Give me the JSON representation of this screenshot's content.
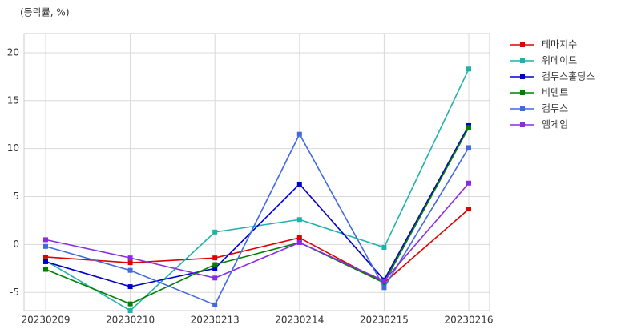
{
  "chart_data": {
    "type": "line",
    "title": "(등락률, %)",
    "categories": [
      "20230209",
      "20230210",
      "20230213",
      "20230214",
      "20230215",
      "20230216"
    ],
    "series": [
      {
        "name": "테마지수",
        "color": "#e00000",
        "values": [
          -1.3,
          -1.9,
          -1.4,
          0.7,
          -4.0,
          3.7
        ]
      },
      {
        "name": "위메이드",
        "color": "#20b2aa",
        "values": [
          -1.7,
          -6.9,
          1.3,
          2.6,
          -0.3,
          18.3
        ]
      },
      {
        "name": "컴투스홀딩스",
        "color": "#0000cd",
        "values": [
          -1.8,
          -4.4,
          -2.5,
          6.3,
          -3.7,
          12.4
        ]
      },
      {
        "name": "비덴트",
        "color": "#008000",
        "values": [
          -2.6,
          -6.2,
          -2.1,
          0.2,
          -4.0,
          12.2
        ]
      },
      {
        "name": "컴투스",
        "color": "#4169e1",
        "values": [
          -0.2,
          -2.7,
          -6.3,
          11.5,
          -4.5,
          10.1
        ]
      },
      {
        "name": "엠게임",
        "color": "#8a2be2",
        "values": [
          0.5,
          -1.4,
          -3.5,
          0.2,
          -3.8,
          6.4
        ]
      }
    ],
    "ylim": [
      -6.9,
      22
    ],
    "yticks": [
      -5,
      0,
      5,
      10,
      15,
      20
    ],
    "grid": true,
    "legend": "outside-right"
  }
}
